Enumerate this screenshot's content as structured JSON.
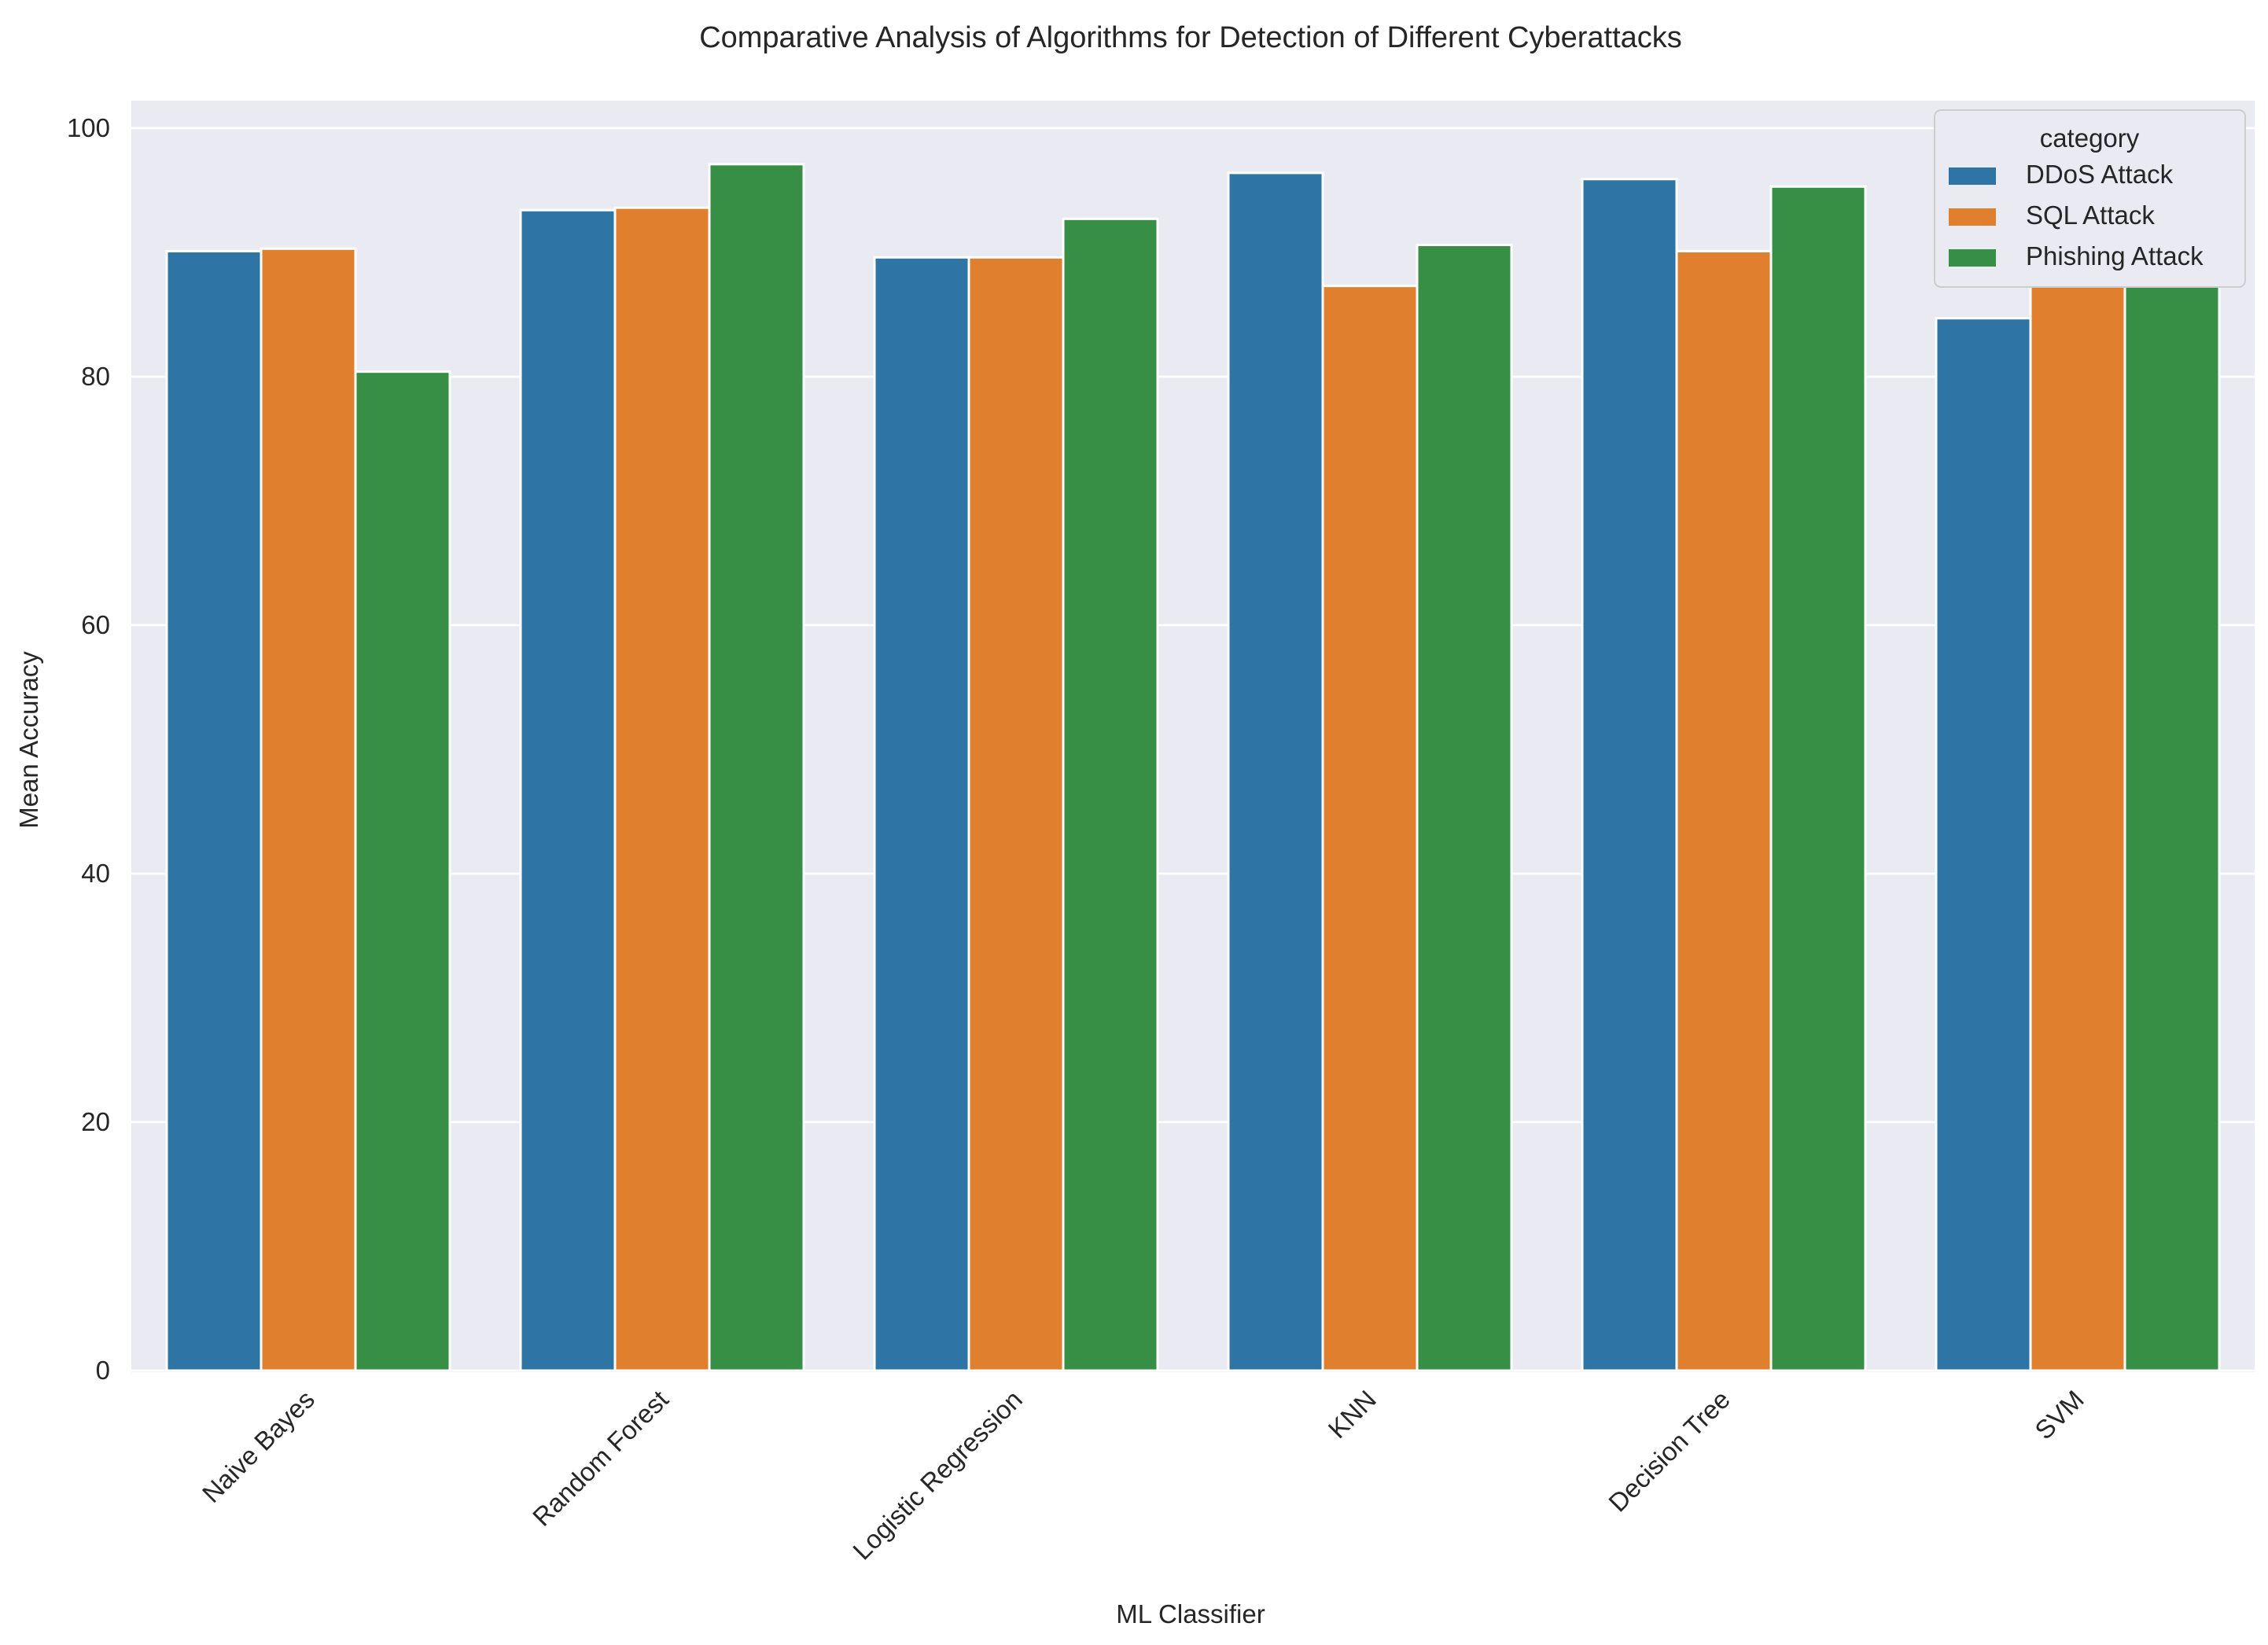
{
  "chart_data": {
    "type": "bar",
    "title": "Comparative Analysis of Algorithms for Detection of Different Cyberattacks",
    "xlabel": "ML Classifier",
    "ylabel": "Mean Accuracy",
    "ylim": [
      0,
      102
    ],
    "yticks": [
      0,
      20,
      40,
      60,
      80,
      100
    ],
    "categories": [
      "Naive Bayes",
      "Random Forest",
      "Logistic Regression",
      "KNN",
      "Decision Tree",
      "SVM"
    ],
    "series": [
      {
        "name": "DDoS Attack",
        "color": "#2e75a6",
        "values": [
          90.1,
          93.4,
          89.6,
          96.4,
          95.9,
          84.7
        ]
      },
      {
        "name": "SQL Attack",
        "color": "#e07f2d",
        "values": [
          90.3,
          93.6,
          89.6,
          87.3,
          90.1,
          89.3
        ]
      },
      {
        "name": "Phishing Attack",
        "color": "#368f44",
        "values": [
          80.4,
          97.1,
          92.7,
          90.6,
          95.3,
          89.1
        ]
      }
    ],
    "legend": {
      "title": "category",
      "position": "top-right"
    },
    "grid": true,
    "background": "#eaeaf2"
  }
}
